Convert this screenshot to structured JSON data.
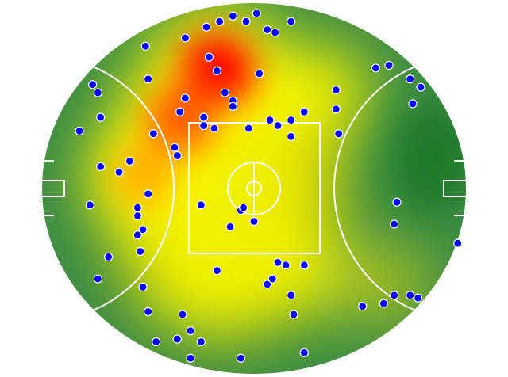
{
  "chart_data": {
    "type": "heatmap",
    "subtype": "field-heatmap-with-scatter",
    "title": "",
    "xlabel": "",
    "ylabel": "",
    "xlim": [
      -80.4,
      80.4
    ],
    "ylim": [
      -68,
      68
    ],
    "grid": false,
    "legend": "none",
    "colors": {
      "low": "#2e7d32",
      "mid": "#ffff00",
      "high": "#ff0000",
      "point_fill": "#0000ff",
      "point_edge": "#ffffff",
      "lines": "#ffffff"
    },
    "heat_zones": [
      {
        "x": -14,
        "y": 43,
        "level": 1.0
      },
      {
        "x": -28,
        "y": 25,
        "level": 0.85
      },
      {
        "x": -42,
        "y": 5,
        "level": 0.7
      },
      {
        "x": -10,
        "y": 0,
        "level": 0.55
      },
      {
        "x": -20,
        "y": -35,
        "level": 0.5
      },
      {
        "x": 15,
        "y": -30,
        "level": 0.45
      },
      {
        "x": 25,
        "y": 35,
        "level": 0.45
      },
      {
        "x": 50,
        "y": -35,
        "level": 0.3
      }
    ],
    "points": [
      {
        "x": 1,
        "y": 64
      },
      {
        "x": -8,
        "y": 63
      },
      {
        "x": -3,
        "y": 61
      },
      {
        "x": -13,
        "y": 61
      },
      {
        "x": -18,
        "y": 59
      },
      {
        "x": 14,
        "y": 61
      },
      {
        "x": 5,
        "y": 58
      },
      {
        "x": 8,
        "y": 57
      },
      {
        "x": -26,
        "y": 55
      },
      {
        "x": -41,
        "y": 52
      },
      {
        "x": -17,
        "y": 48
      },
      {
        "x": -14,
        "y": 43
      },
      {
        "x": 2,
        "y": 42
      },
      {
        "x": -40,
        "y": 40
      },
      {
        "x": -61,
        "y": 38
      },
      {
        "x": -59,
        "y": 35
      },
      {
        "x": -11,
        "y": 35
      },
      {
        "x": -8,
        "y": 32
      },
      {
        "x": -8,
        "y": 30
      },
      {
        "x": -26,
        "y": 33
      },
      {
        "x": -28,
        "y": 28
      },
      {
        "x": -19,
        "y": 26
      },
      {
        "x": -19,
        "y": 23
      },
      {
        "x": -15,
        "y": 22
      },
      {
        "x": -2,
        "y": 22
      },
      {
        "x": 6,
        "y": 25
      },
      {
        "x": 9,
        "y": 23
      },
      {
        "x": 14,
        "y": 25
      },
      {
        "x": 19,
        "y": 28
      },
      {
        "x": 14,
        "y": 19
      },
      {
        "x": -58,
        "y": 26
      },
      {
        "x": -66,
        "y": 21
      },
      {
        "x": -38,
        "y": 20
      },
      {
        "x": -30,
        "y": 15
      },
      {
        "x": -29,
        "y": 12
      },
      {
        "x": -47,
        "y": 10
      },
      {
        "x": -51,
        "y": 6
      },
      {
        "x": -58,
        "y": 8
      },
      {
        "x": -40,
        "y": -2
      },
      {
        "x": -62,
        "y": -6
      },
      {
        "x": -44,
        "y": -7
      },
      {
        "x": -44,
        "y": -10
      },
      {
        "x": -42,
        "y": -15
      },
      {
        "x": -44,
        "y": -17
      },
      {
        "x": -43,
        "y": -23
      },
      {
        "x": -55,
        "y": -25
      },
      {
        "x": -59,
        "y": -33
      },
      {
        "x": -42,
        "y": -36
      },
      {
        "x": -40,
        "y": -45
      },
      {
        "x": -27,
        "y": -46
      },
      {
        "x": -24,
        "y": -52
      },
      {
        "x": -29,
        "y": -55
      },
      {
        "x": -20,
        "y": -56
      },
      {
        "x": -37,
        "y": -56
      },
      {
        "x": -24,
        "y": -62
      },
      {
        "x": -5,
        "y": -62
      },
      {
        "x": 19,
        "y": -60
      },
      {
        "x": 15,
        "y": -46
      },
      {
        "x": 14,
        "y": -39
      },
      {
        "x": 5,
        "y": -35
      },
      {
        "x": 7,
        "y": -33
      },
      {
        "x": 9,
        "y": -27
      },
      {
        "x": 12,
        "y": -28
      },
      {
        "x": 19,
        "y": -28
      },
      {
        "x": -14,
        "y": -30
      },
      {
        "x": -9,
        "y": -14
      },
      {
        "x": 0,
        "y": -12
      },
      {
        "x": -5,
        "y": -8
      },
      {
        "x": -4,
        "y": -7
      },
      {
        "x": -20,
        "y": -6
      },
      {
        "x": 31,
        "y": 36
      },
      {
        "x": 31,
        "y": 29
      },
      {
        "x": 32,
        "y": 20
      },
      {
        "x": 46,
        "y": 44
      },
      {
        "x": 51,
        "y": 45
      },
      {
        "x": 59,
        "y": 40
      },
      {
        "x": 63,
        "y": 37
      },
      {
        "x": 60,
        "y": 31
      },
      {
        "x": 54,
        "y": -5
      },
      {
        "x": 53,
        "y": -13
      },
      {
        "x": 77,
        "y": -20
      },
      {
        "x": 41,
        "y": -43
      },
      {
        "x": 49,
        "y": -42
      },
      {
        "x": 53,
        "y": -39
      },
      {
        "x": 59,
        "y": -39
      },
      {
        "x": 62,
        "y": -40
      }
    ]
  }
}
